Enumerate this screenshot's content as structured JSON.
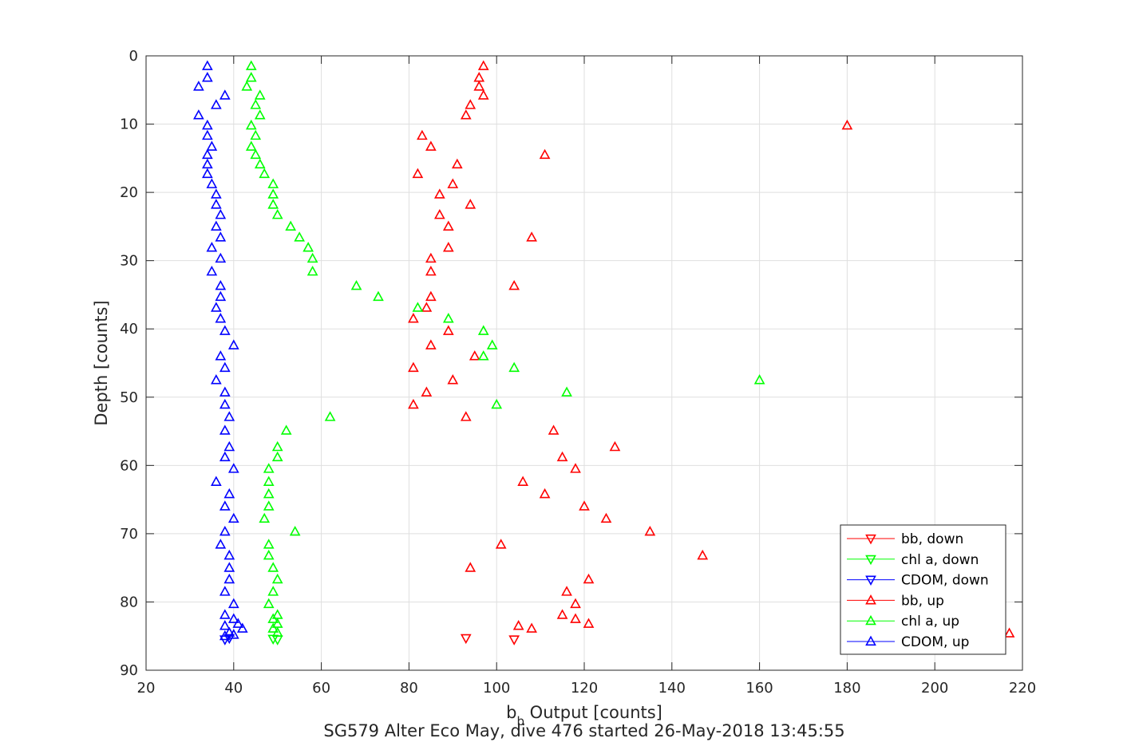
{
  "chart_data": {
    "type": "scatter",
    "xlabel_main": "b",
    "xlabel_sub": "b",
    "xlabel_rest": " Output [counts]",
    "ylabel": "Depth [counts]",
    "caption": "SG579 Alter Eco May, dive 476 started 26-May-2018 13:45:55",
    "xlim": [
      20,
      220
    ],
    "ylim": [
      0,
      90
    ],
    "y_reversed": true,
    "xticks": [
      20,
      40,
      60,
      80,
      100,
      120,
      140,
      160,
      180,
      200,
      220
    ],
    "yticks": [
      0,
      10,
      20,
      30,
      40,
      50,
      60,
      70,
      80,
      90
    ],
    "grid": true,
    "legend_position": "bottom-right",
    "series": [
      {
        "name": "bb, down",
        "color": "#ff0000",
        "marker": "triangle-down",
        "points": [
          [
            93,
            85.3
          ],
          [
            104,
            85.5
          ]
        ]
      },
      {
        "name": "chl a, down",
        "color": "#00ff00",
        "marker": "triangle-down",
        "points": [
          [
            49,
            85.4
          ],
          [
            50,
            85.5
          ]
        ]
      },
      {
        "name": "CDOM, down",
        "color": "#0000ff",
        "marker": "triangle-down",
        "points": [
          [
            38,
            85.5
          ],
          [
            39,
            85.3
          ]
        ]
      },
      {
        "name": "bb, up",
        "color": "#ff0000",
        "marker": "triangle-up",
        "points": [
          [
            97,
            1.5
          ],
          [
            96,
            3.2
          ],
          [
            96,
            4.5
          ],
          [
            97,
            5.8
          ],
          [
            94,
            7.2
          ],
          [
            93,
            8.7
          ],
          [
            180,
            10.2
          ],
          [
            83,
            11.7
          ],
          [
            85,
            13.3
          ],
          [
            111,
            14.5
          ],
          [
            91,
            15.9
          ],
          [
            82,
            17.3
          ],
          [
            90,
            18.8
          ],
          [
            87,
            20.3
          ],
          [
            94,
            21.8
          ],
          [
            87,
            23.3
          ],
          [
            89,
            25.0
          ],
          [
            108,
            26.6
          ],
          [
            89,
            28.1
          ],
          [
            85,
            29.7
          ],
          [
            85,
            31.6
          ],
          [
            104,
            33.7
          ],
          [
            85,
            35.3
          ],
          [
            84,
            36.9
          ],
          [
            81,
            38.5
          ],
          [
            89,
            40.3
          ],
          [
            85,
            42.4
          ],
          [
            95,
            44.0
          ],
          [
            81,
            45.7
          ],
          [
            90,
            47.5
          ],
          [
            84,
            49.3
          ],
          [
            81,
            51.1
          ],
          [
            93,
            52.9
          ],
          [
            113,
            54.9
          ],
          [
            127,
            57.3
          ],
          [
            115,
            58.8
          ],
          [
            118,
            60.5
          ],
          [
            106,
            62.4
          ],
          [
            111,
            64.2
          ],
          [
            120,
            66.0
          ],
          [
            125,
            67.8
          ],
          [
            135,
            69.7
          ],
          [
            101,
            71.6
          ],
          [
            147,
            73.2
          ],
          [
            94,
            75.0
          ],
          [
            121,
            76.7
          ],
          [
            116,
            78.5
          ],
          [
            118,
            80.3
          ],
          [
            115,
            81.9
          ],
          [
            118,
            82.5
          ],
          [
            121,
            83.2
          ],
          [
            108,
            83.9
          ],
          [
            105,
            83.5
          ],
          [
            217,
            84.6
          ]
        ]
      },
      {
        "name": "chl a, up",
        "color": "#00ff00",
        "marker": "triangle-up",
        "points": [
          [
            44,
            1.5
          ],
          [
            44,
            3.2
          ],
          [
            43,
            4.5
          ],
          [
            46,
            5.8
          ],
          [
            45,
            7.2
          ],
          [
            46,
            8.7
          ],
          [
            44,
            10.2
          ],
          [
            45,
            11.7
          ],
          [
            44,
            13.3
          ],
          [
            45,
            14.5
          ],
          [
            46,
            15.9
          ],
          [
            47,
            17.3
          ],
          [
            49,
            18.8
          ],
          [
            49,
            20.3
          ],
          [
            49,
            21.8
          ],
          [
            50,
            23.3
          ],
          [
            53,
            25.0
          ],
          [
            55,
            26.6
          ],
          [
            57,
            28.1
          ],
          [
            58,
            29.7
          ],
          [
            58,
            31.6
          ],
          [
            68,
            33.7
          ],
          [
            73,
            35.3
          ],
          [
            82,
            36.9
          ],
          [
            89,
            38.5
          ],
          [
            97,
            40.3
          ],
          [
            99,
            42.4
          ],
          [
            97,
            44.0
          ],
          [
            104,
            45.7
          ],
          [
            160,
            47.5
          ],
          [
            116,
            49.3
          ],
          [
            100,
            51.1
          ],
          [
            62,
            52.9
          ],
          [
            52,
            54.9
          ],
          [
            50,
            57.3
          ],
          [
            50,
            58.8
          ],
          [
            48,
            60.5
          ],
          [
            48,
            62.4
          ],
          [
            48,
            64.2
          ],
          [
            48,
            66.0
          ],
          [
            47,
            67.8
          ],
          [
            54,
            69.7
          ],
          [
            48,
            71.6
          ],
          [
            48,
            73.2
          ],
          [
            49,
            75.0
          ],
          [
            50,
            76.7
          ],
          [
            49,
            78.5
          ],
          [
            48,
            80.3
          ],
          [
            50,
            81.9
          ],
          [
            49,
            82.5
          ],
          [
            50,
            83.2
          ],
          [
            49,
            83.9
          ],
          [
            50,
            84.5
          ]
        ]
      },
      {
        "name": "CDOM, up",
        "color": "#0000ff",
        "marker": "triangle-up",
        "points": [
          [
            34,
            1.5
          ],
          [
            34,
            3.2
          ],
          [
            32,
            4.5
          ],
          [
            38,
            5.8
          ],
          [
            36,
            7.2
          ],
          [
            32,
            8.7
          ],
          [
            34,
            10.2
          ],
          [
            34,
            11.7
          ],
          [
            35,
            13.3
          ],
          [
            34,
            14.5
          ],
          [
            34,
            15.9
          ],
          [
            34,
            17.3
          ],
          [
            35,
            18.8
          ],
          [
            36,
            20.3
          ],
          [
            36,
            21.8
          ],
          [
            37,
            23.3
          ],
          [
            36,
            25.0
          ],
          [
            37,
            26.6
          ],
          [
            35,
            28.1
          ],
          [
            37,
            29.7
          ],
          [
            35,
            31.6
          ],
          [
            37,
            33.7
          ],
          [
            37,
            35.3
          ],
          [
            36,
            36.9
          ],
          [
            37,
            38.5
          ],
          [
            38,
            40.3
          ],
          [
            40,
            42.4
          ],
          [
            37,
            44.0
          ],
          [
            38,
            45.7
          ],
          [
            36,
            47.5
          ],
          [
            38,
            49.3
          ],
          [
            38,
            51.1
          ],
          [
            39,
            52.9
          ],
          [
            38,
            54.9
          ],
          [
            39,
            57.3
          ],
          [
            38,
            58.8
          ],
          [
            40,
            60.5
          ],
          [
            36,
            62.4
          ],
          [
            39,
            64.2
          ],
          [
            38,
            66.0
          ],
          [
            40,
            67.8
          ],
          [
            38,
            69.7
          ],
          [
            37,
            71.6
          ],
          [
            39,
            73.2
          ],
          [
            39,
            75.0
          ],
          [
            39,
            76.7
          ],
          [
            38,
            78.5
          ],
          [
            40,
            80.3
          ],
          [
            38,
            81.9
          ],
          [
            40,
            82.5
          ],
          [
            41,
            83.2
          ],
          [
            42,
            83.9
          ],
          [
            38,
            83.5
          ],
          [
            39,
            84.5
          ],
          [
            38,
            85.0
          ],
          [
            40,
            84.8
          ]
        ]
      }
    ]
  }
}
